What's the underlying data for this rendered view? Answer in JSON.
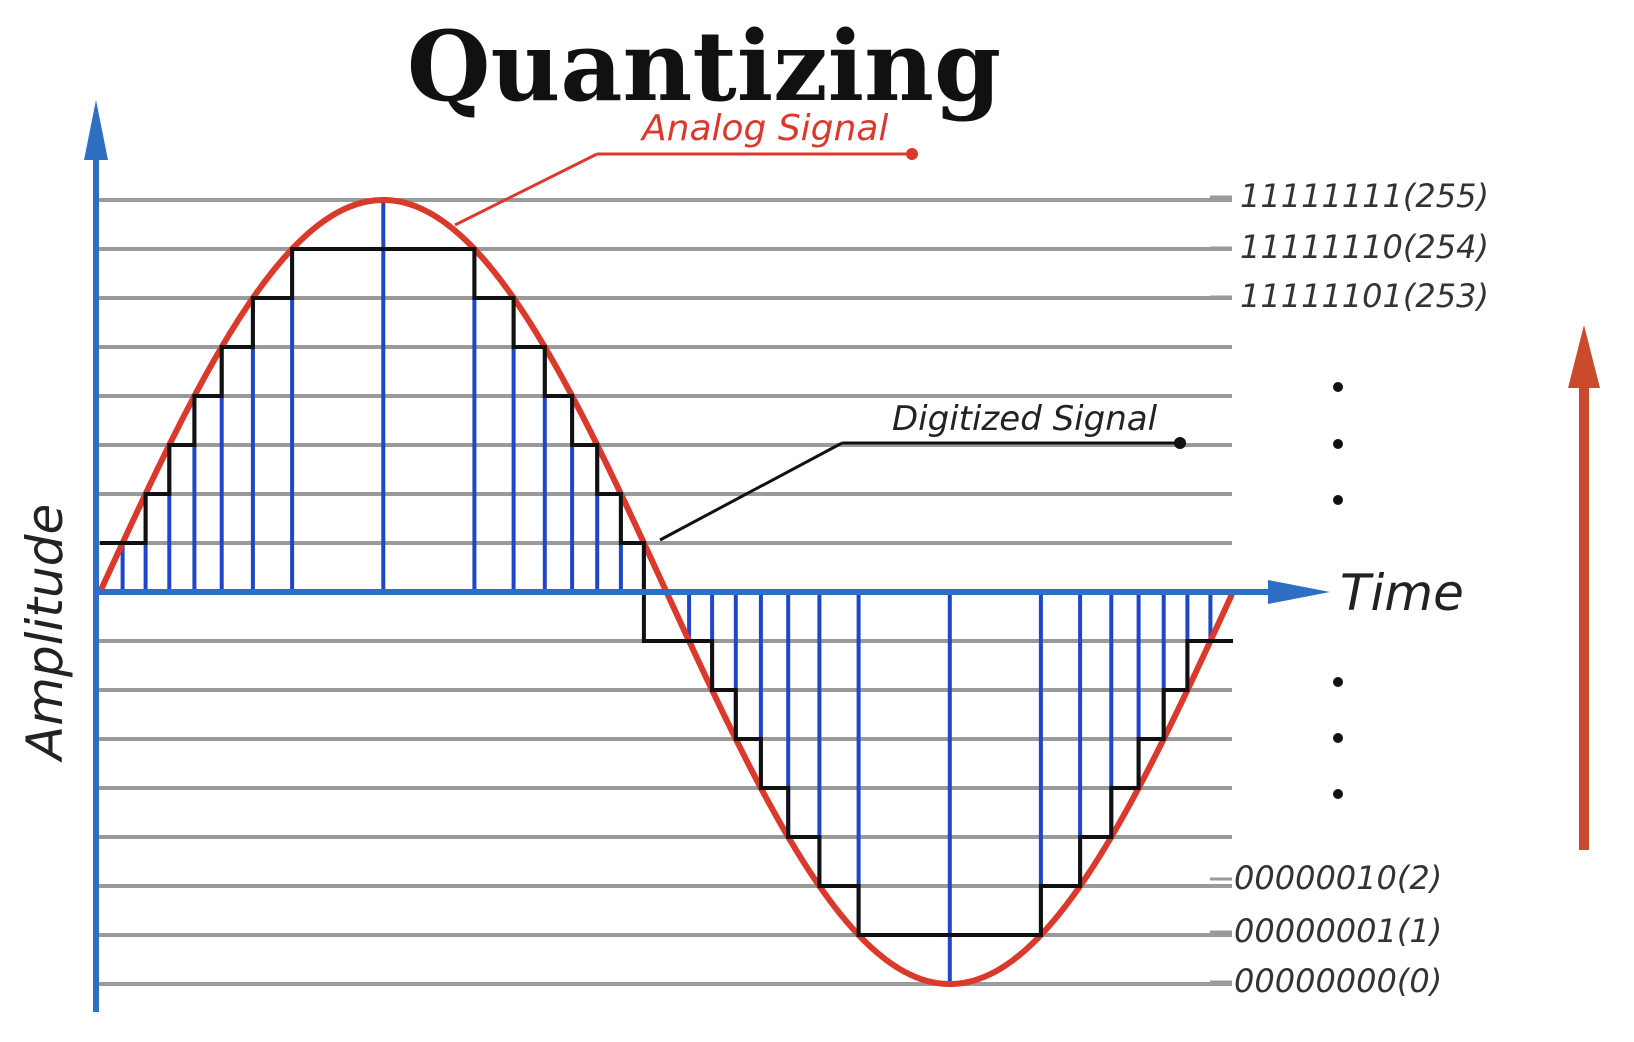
{
  "title": "Quantizing",
  "annotations": {
    "analog_signal": "Analog Signal",
    "digitized_signal": "Digitized Signal"
  },
  "axes": {
    "x_label": "Time",
    "y_label": "Amplitude"
  },
  "level_codes": {
    "top": [
      "11111111(255)",
      "11111110(254)",
      "11111101(253)"
    ],
    "bottom": [
      "00000010(2)",
      "00000001(1)",
      "00000000(0)"
    ]
  },
  "ellipsis": "•",
  "colors": {
    "axis_blue": "#2e6fc4",
    "sample_blue": "#1f46c8",
    "analog_red": "#d93a2b",
    "digitized_black": "#111111",
    "grid_gray": "#9a9a9a",
    "arrow_red": "#c94a2c"
  }
}
